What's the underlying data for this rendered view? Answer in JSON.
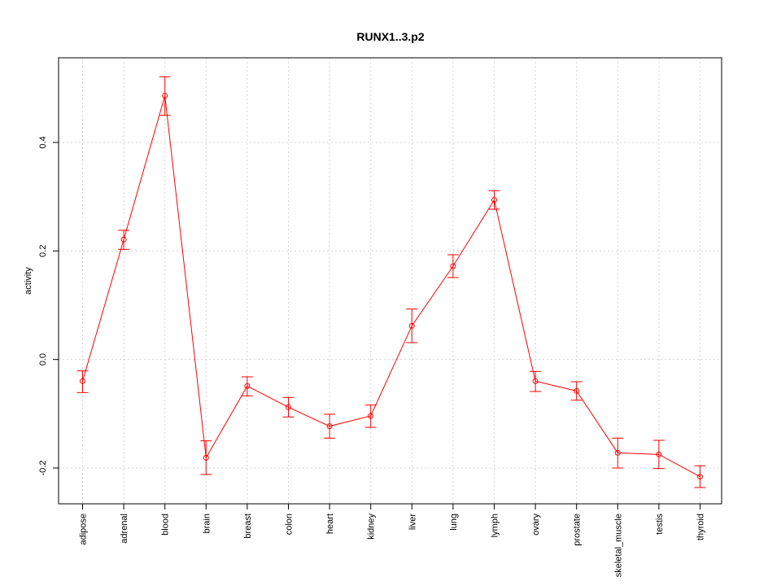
{
  "chart_data": {
    "type": "line",
    "title": "RUNX1..3.p2",
    "xlabel": "",
    "ylabel": "activity",
    "categories": [
      "adipose",
      "adrenal",
      "blood",
      "brain",
      "breast",
      "colon",
      "heart",
      "kidney",
      "liver",
      "lung",
      "lymph",
      "ovary",
      "prostate",
      "skeletal_muscle",
      "testis",
      "thyroid"
    ],
    "series": [
      {
        "values": [
          -0.04,
          0.221,
          0.486,
          -0.181,
          -0.049,
          -0.088,
          -0.123,
          -0.104,
          0.062,
          0.172,
          0.294,
          -0.04,
          -0.058,
          -0.172,
          -0.175,
          -0.216
        ],
        "lower": [
          -0.061,
          0.203,
          0.45,
          -0.212,
          -0.067,
          -0.106,
          -0.145,
          -0.125,
          0.031,
          0.151,
          0.277,
          -0.059,
          -0.075,
          -0.2,
          -0.201,
          -0.236
        ],
        "upper": [
          -0.021,
          0.238,
          0.521,
          -0.15,
          -0.032,
          -0.07,
          -0.101,
          -0.084,
          0.093,
          0.193,
          0.311,
          -0.022,
          -0.041,
          -0.145,
          -0.149,
          -0.196
        ],
        "color": "#ff0000"
      }
    ],
    "yticks": [
      -0.2,
      0.0,
      0.2,
      0.4
    ],
    "ytick_labels": [
      "-0.2",
      "0.0",
      "0.2",
      "0.4"
    ],
    "ylim": [
      -0.266,
      0.556
    ],
    "grid": true,
    "grid_color": "#d3d3d3",
    "axis_color": "#000000"
  }
}
